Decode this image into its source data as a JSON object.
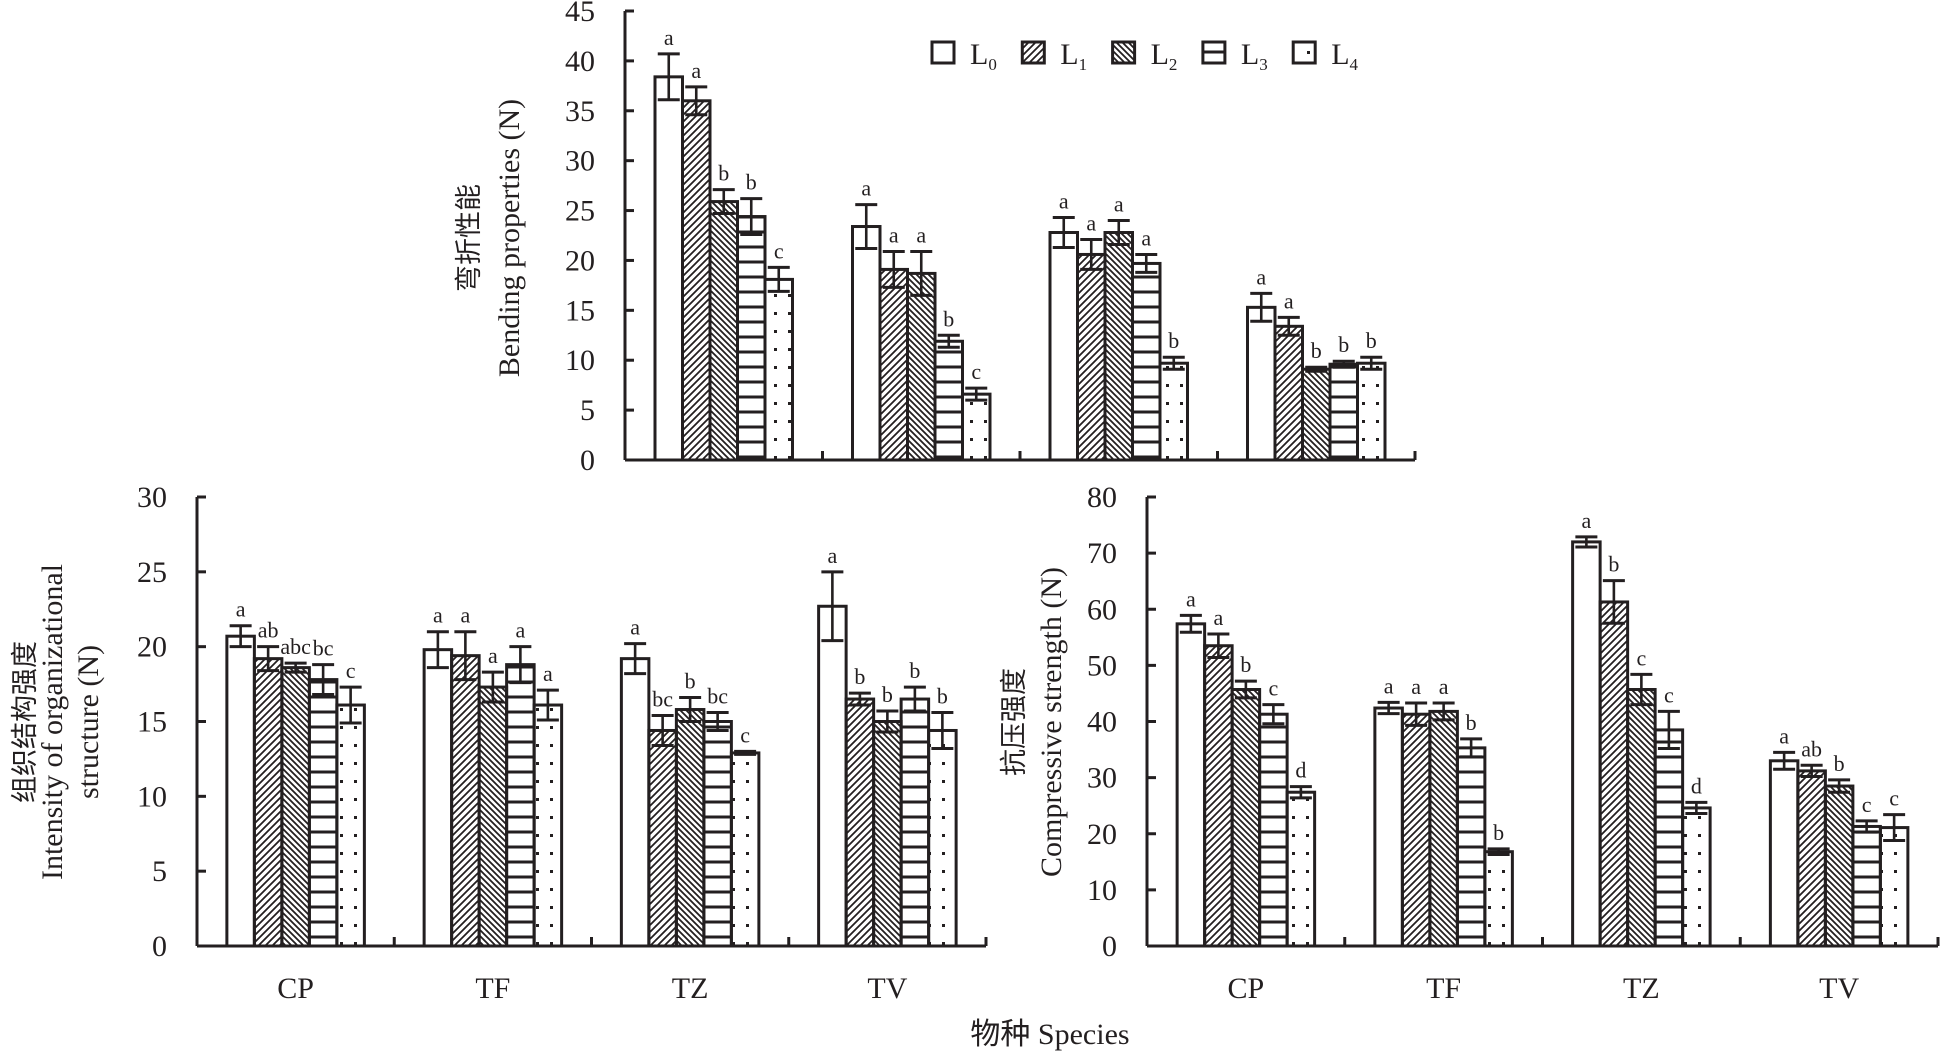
{
  "legend": {
    "items": [
      {
        "base": "L",
        "sub": "0",
        "pattern": "empty"
      },
      {
        "base": "L",
        "sub": "1",
        "pattern": "diag-right"
      },
      {
        "base": "L",
        "sub": "2",
        "pattern": "diag-left"
      },
      {
        "base": "L",
        "sub": "3",
        "pattern": "horizontal"
      },
      {
        "base": "L",
        "sub": "4",
        "pattern": "dots"
      }
    ]
  },
  "xtitle": "物种 Species",
  "colors": {
    "ink": "#231f20",
    "background": "#ffffff"
  },
  "chart_data": [
    {
      "id": "bending",
      "type": "bar",
      "title_cn": "弯折性能",
      "ylabel_lines": [
        "Bending properties (N)"
      ],
      "ylim": [
        0,
        45
      ],
      "yticks": [
        0,
        5,
        10,
        15,
        20,
        25,
        30,
        35,
        40,
        45
      ],
      "categories": [
        "CP",
        "TF",
        "TZ",
        "TV"
      ],
      "show_category_labels": false,
      "series": [
        {
          "name": "L0",
          "values": [
            38.4,
            23.4,
            22.8,
            15.3
          ],
          "errors": [
            2.3,
            2.2,
            1.5,
            1.4
          ],
          "letters": [
            "a",
            "a",
            "a",
            "a"
          ]
        },
        {
          "name": "L1",
          "values": [
            36.0,
            19.1,
            20.6,
            13.4
          ],
          "errors": [
            1.4,
            1.8,
            1.5,
            0.9
          ],
          "letters": [
            "a",
            "a",
            "a",
            "a"
          ]
        },
        {
          "name": "L2",
          "values": [
            25.9,
            18.7,
            22.8,
            9.1
          ],
          "errors": [
            1.2,
            2.2,
            1.2,
            0.2
          ],
          "letters": [
            "b",
            "a",
            "a",
            "b"
          ]
        },
        {
          "name": "L3",
          "values": [
            24.4,
            11.9,
            19.7,
            9.6
          ],
          "errors": [
            1.8,
            0.6,
            0.9,
            0.3
          ],
          "letters": [
            "b",
            "b",
            "a",
            "b"
          ]
        },
        {
          "name": "L4",
          "values": [
            18.1,
            6.6,
            9.7,
            9.7
          ],
          "errors": [
            1.2,
            0.6,
            0.6,
            0.6
          ],
          "letters": [
            "c",
            "c",
            "b",
            "b"
          ]
        }
      ]
    },
    {
      "id": "organizational",
      "type": "bar",
      "title_cn": "组织结构强度",
      "ylabel_lines": [
        "Intensity of organizational",
        "structure (N)"
      ],
      "ylim": [
        0,
        30
      ],
      "yticks": [
        0,
        5,
        10,
        15,
        20,
        25,
        30
      ],
      "categories": [
        "CP",
        "TF",
        "TZ",
        "TV"
      ],
      "show_category_labels": true,
      "series": [
        {
          "name": "L0",
          "values": [
            20.7,
            19.8,
            19.2,
            22.7
          ],
          "errors": [
            0.7,
            1.2,
            1.0,
            2.3
          ],
          "letters": [
            "a",
            "a",
            "a",
            "a"
          ]
        },
        {
          "name": "L1",
          "values": [
            19.2,
            19.4,
            14.4,
            16.5
          ],
          "errors": [
            0.8,
            1.6,
            1.0,
            0.4
          ],
          "letters": [
            "ab",
            "a",
            "bc",
            "b"
          ]
        },
        {
          "name": "L2",
          "values": [
            18.6,
            17.3,
            15.8,
            15.0
          ],
          "errors": [
            0.3,
            1.0,
            0.8,
            0.7
          ],
          "letters": [
            "abc",
            "a",
            "b",
            "b"
          ]
        },
        {
          "name": "L3",
          "values": [
            17.8,
            18.8,
            15.0,
            16.5
          ],
          "errors": [
            1.0,
            1.2,
            0.6,
            0.8
          ],
          "letters": [
            "bc",
            "a",
            "bc",
            "b"
          ]
        },
        {
          "name": "L4",
          "values": [
            16.1,
            16.1,
            12.9,
            14.4
          ],
          "errors": [
            1.2,
            1.0,
            0.1,
            1.2
          ],
          "letters": [
            "c",
            "a",
            "c",
            "b"
          ]
        }
      ]
    },
    {
      "id": "compressive",
      "type": "bar",
      "title_cn": "抗压强度",
      "ylabel_lines": [
        "Compressive strength (N)"
      ],
      "ylim": [
        0,
        80
      ],
      "yticks": [
        0,
        10,
        20,
        30,
        40,
        50,
        60,
        70,
        80
      ],
      "categories": [
        "CP",
        "TF",
        "TZ",
        "TV"
      ],
      "show_category_labels": true,
      "series": [
        {
          "name": "L0",
          "values": [
            57.4,
            42.4,
            72.0,
            33.0
          ],
          "errors": [
            1.5,
            1.0,
            0.9,
            1.5
          ],
          "letters": [
            "a",
            "a",
            "a",
            "a"
          ]
        },
        {
          "name": "L1",
          "values": [
            53.5,
            41.3,
            61.3,
            31.2
          ],
          "errors": [
            2.1,
            2.0,
            3.8,
            1.0
          ],
          "letters": [
            "a",
            "a",
            "b",
            "ab"
          ]
        },
        {
          "name": "L2",
          "values": [
            45.7,
            41.8,
            45.7,
            28.5
          ],
          "errors": [
            1.5,
            1.5,
            2.7,
            1.1
          ],
          "letters": [
            "b",
            "a",
            "c",
            "b"
          ]
        },
        {
          "name": "L3",
          "values": [
            41.3,
            35.3,
            38.5,
            21.3
          ],
          "errors": [
            1.7,
            1.6,
            3.3,
            1.0
          ],
          "letters": [
            "c",
            "b",
            "c",
            "c"
          ]
        },
        {
          "name": "L4",
          "values": [
            27.4,
            16.8,
            24.6,
            21.1
          ],
          "errors": [
            1.0,
            0.5,
            1.0,
            2.3
          ],
          "letters": [
            "d",
            "b",
            "d",
            "c"
          ]
        }
      ]
    }
  ]
}
